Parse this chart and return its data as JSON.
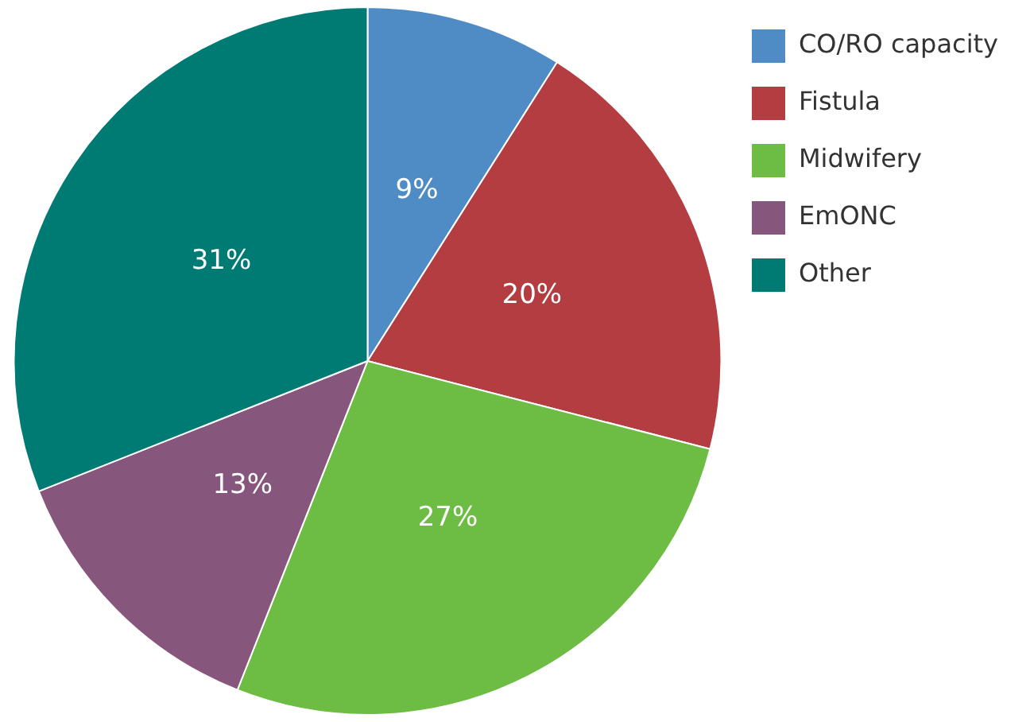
{
  "chart_data": {
    "type": "pie",
    "categories": [
      "CO/RO capacity",
      "Fistula",
      "Midwifery",
      "EmONC",
      "Other"
    ],
    "values": [
      9,
      20,
      27,
      13,
      31
    ],
    "value_labels": [
      "9%",
      "20%",
      "27%",
      "13%",
      "31%"
    ],
    "colors": [
      "#4f8bc4",
      "#b33d40",
      "#6dbd45",
      "#87567d",
      "#007b74"
    ],
    "legend": "top right"
  }
}
